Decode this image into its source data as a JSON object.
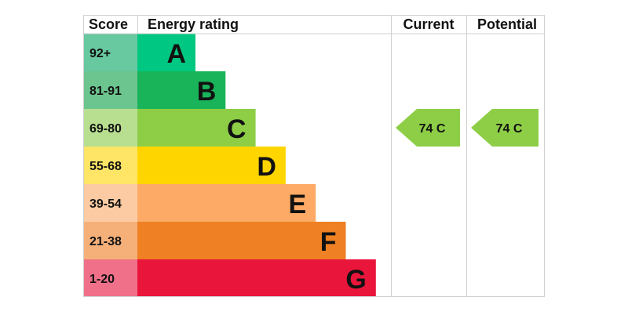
{
  "chart_data": {
    "type": "bar",
    "headers": {
      "score": "Score",
      "rating": "Energy rating",
      "current": "Current",
      "potential": "Potential"
    },
    "bands": [
      {
        "score": "92+",
        "letter": "A",
        "color": "#00c781",
        "tint": "#68c8a0"
      },
      {
        "score": "81-91",
        "letter": "B",
        "color": "#19b459",
        "tint": "#6cc48e"
      },
      {
        "score": "69-80",
        "letter": "C",
        "color": "#8dce46",
        "tint": "#b8df90"
      },
      {
        "score": "55-68",
        "letter": "D",
        "color": "#ffd500",
        "tint": "#ffe566"
      },
      {
        "score": "39-54",
        "letter": "E",
        "color": "#fcaa65",
        "tint": "#fdcba3"
      },
      {
        "score": "21-38",
        "letter": "F",
        "color": "#ef8023",
        "tint": "#f5b07a"
      },
      {
        "score": "1-20",
        "letter": "G",
        "color": "#e9153b",
        "tint": "#f07089"
      }
    ],
    "current": {
      "value": 74,
      "band": "C",
      "label": "74  C",
      "color": "#8dce46"
    },
    "potential": {
      "value": 74,
      "band": "C",
      "label": "74  C",
      "color": "#8dce46"
    }
  }
}
